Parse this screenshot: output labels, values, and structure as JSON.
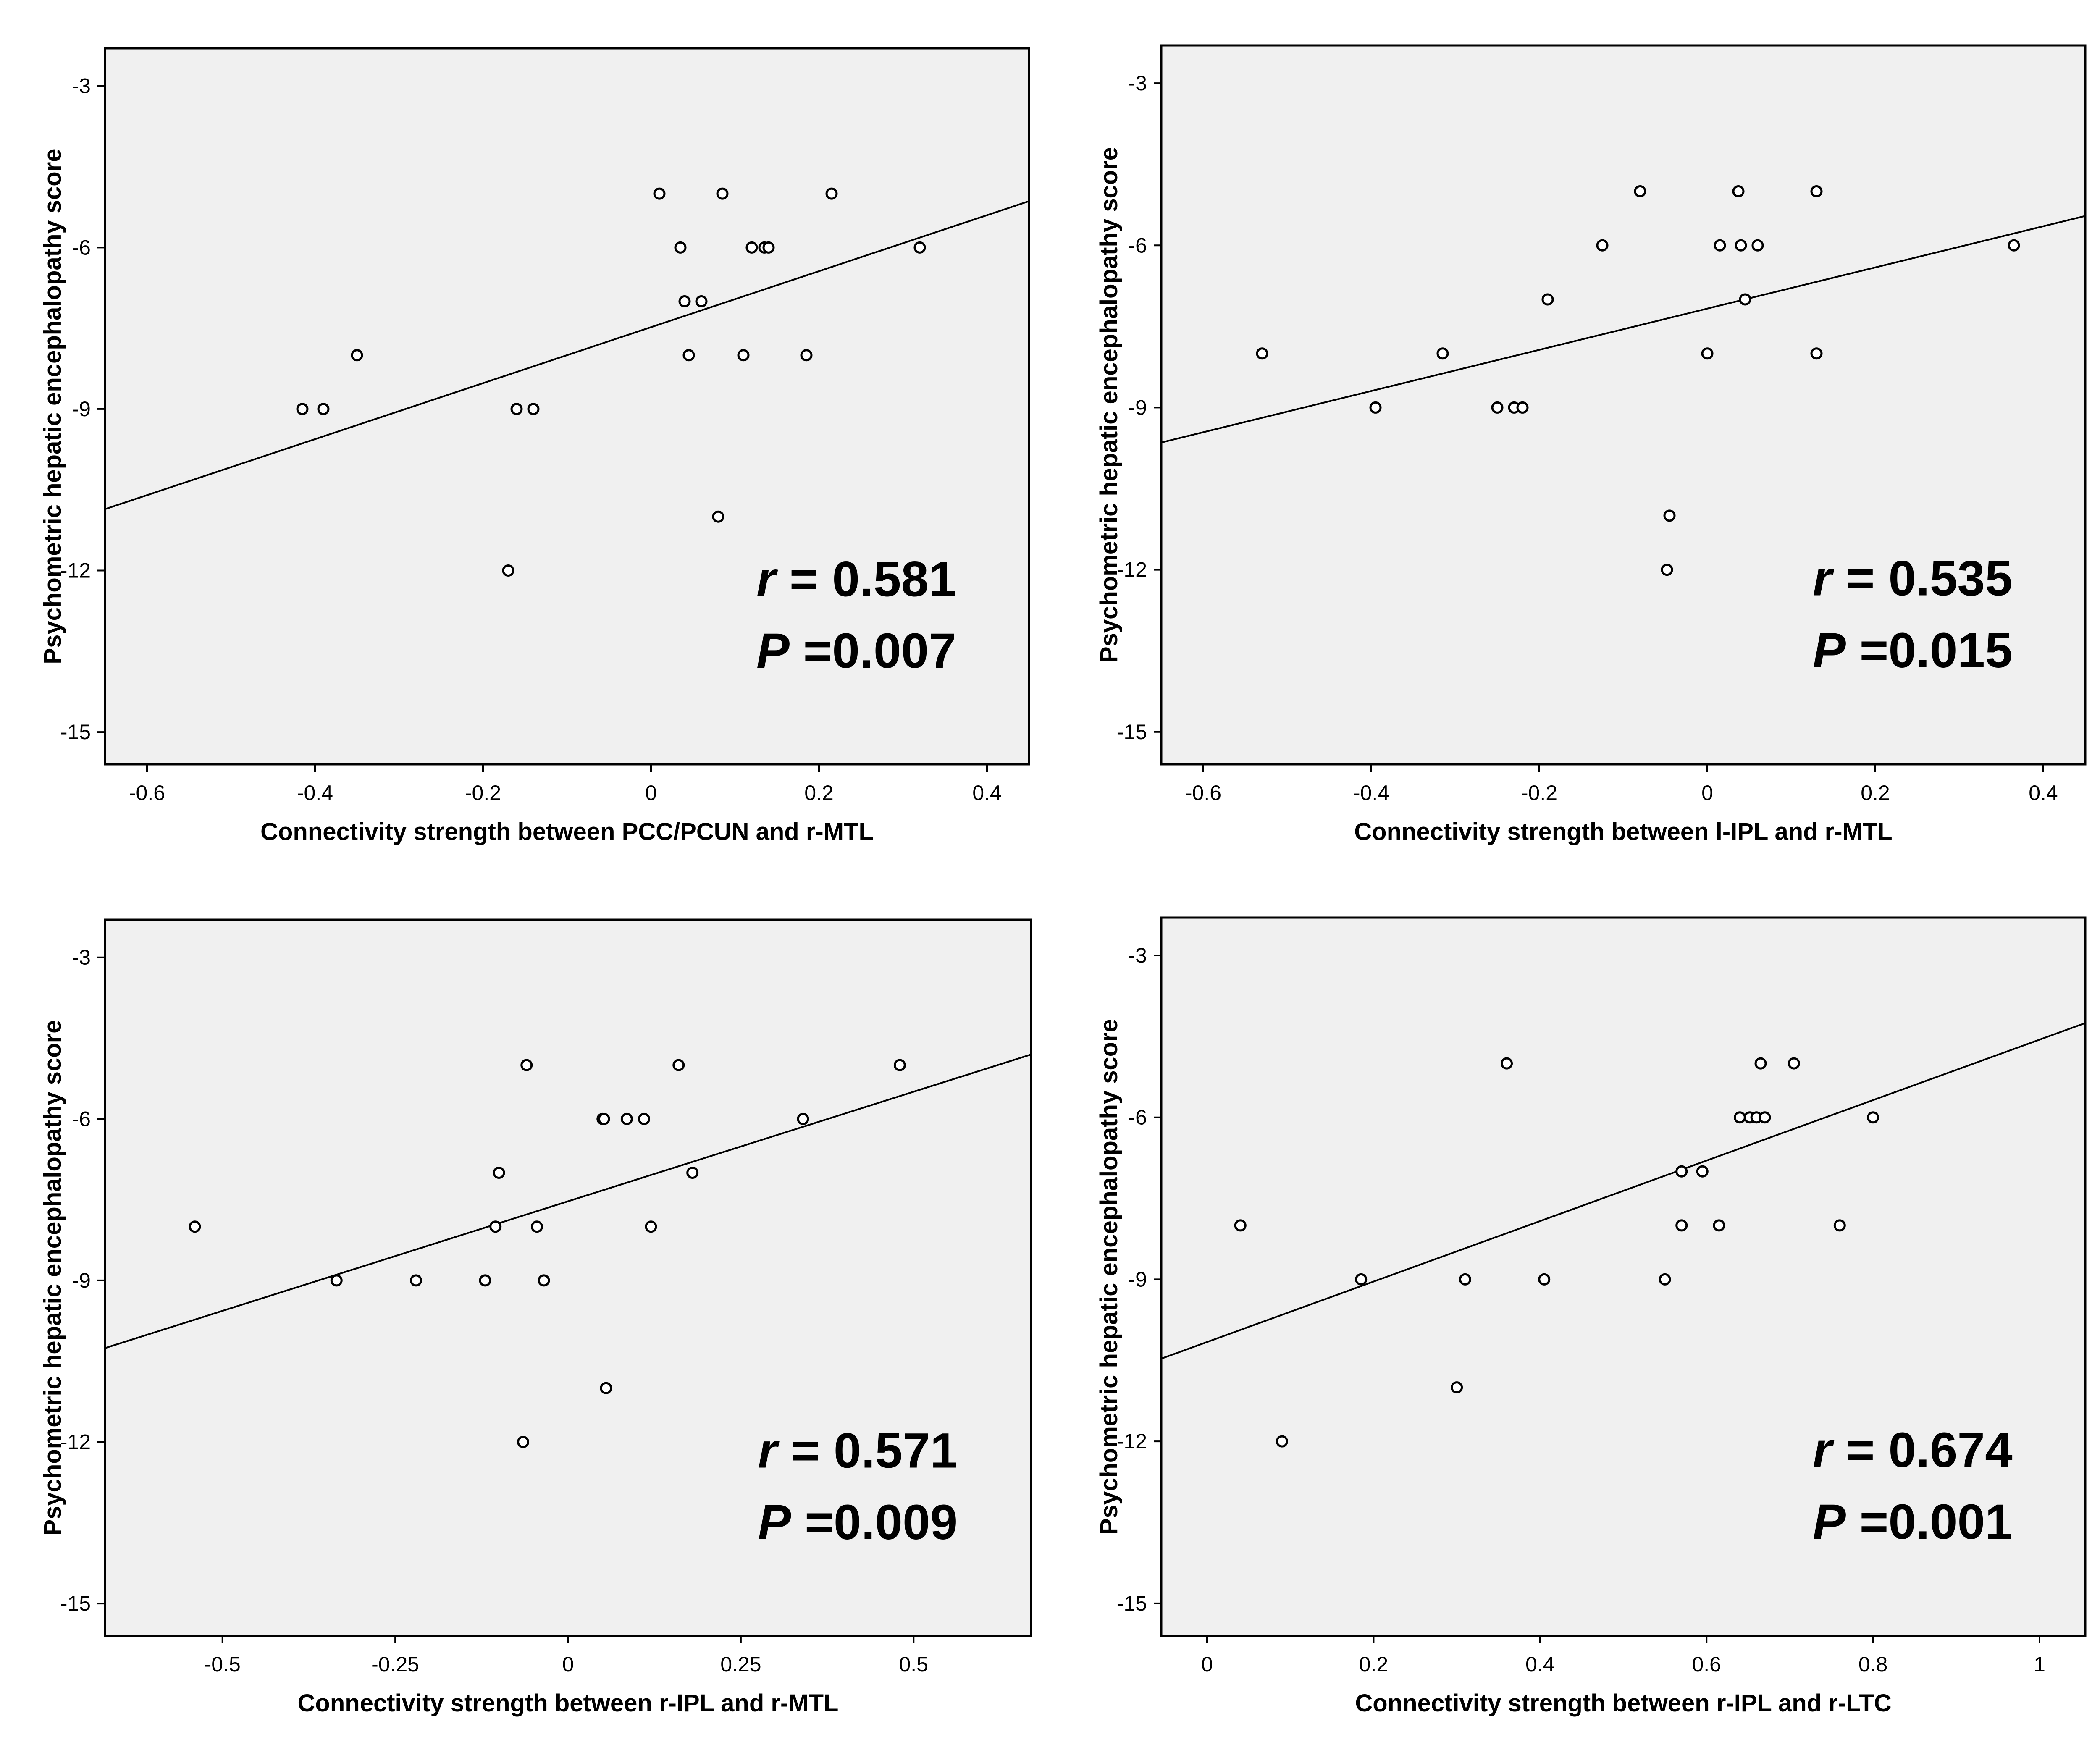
{
  "chart_data": [
    {
      "type": "scatter",
      "xlabel": "Connectivity strength between PCC/PCUN and r-MTL",
      "ylabel": "Psychometric hepatic encephalopathy score",
      "xlim": [
        -0.65,
        0.45
      ],
      "ylim": [
        -15.6,
        -2.3
      ],
      "xticks": [
        -0.6,
        -0.4,
        -0.2,
        0,
        0.2,
        0.4
      ],
      "xtick_labels": [
        "-0.6",
        "-0.4",
        "-0.2",
        "0",
        "0.2",
        "0.4"
      ],
      "yticks": [
        -3,
        -6,
        -9,
        -12,
        -15
      ],
      "ytick_labels": [
        "-3",
        "-6",
        "-9",
        "-12",
        "-15"
      ],
      "points": [
        [
          -0.415,
          -9
        ],
        [
          -0.39,
          -9
        ],
        [
          -0.35,
          -8
        ],
        [
          -0.17,
          -12
        ],
        [
          -0.16,
          -9
        ],
        [
          -0.14,
          -9
        ],
        [
          0.01,
          -5
        ],
        [
          0.035,
          -6
        ],
        [
          0.04,
          -7
        ],
        [
          0.045,
          -8
        ],
        [
          0.06,
          -7
        ],
        [
          0.08,
          -11
        ],
        [
          0.085,
          -5
        ],
        [
          0.11,
          -8
        ],
        [
          0.12,
          -6
        ],
        [
          0.135,
          -6
        ],
        [
          0.14,
          -6
        ],
        [
          0.185,
          -8
        ],
        [
          0.215,
          -5
        ],
        [
          0.32,
          -6
        ]
      ],
      "fit_line": {
        "slope": 5.2,
        "intercept": -7.48
      },
      "r_label": "r",
      "r_value": "= 0.581",
      "p_label": "P",
      "p_value": "=0.007"
    },
    {
      "type": "scatter",
      "xlabel": "Connectivity strength between l-IPL and r-MTL",
      "ylabel": "Psychometric hepatic encephalopathy score",
      "xlim": [
        -0.65,
        0.45
      ],
      "ylim": [
        -15.6,
        -2.3
      ],
      "xticks": [
        -0.6,
        -0.4,
        -0.2,
        0,
        0.2,
        0.4
      ],
      "xtick_labels": [
        "-0.6",
        "-0.4",
        "-0.2",
        "0",
        "0.2",
        "0.4"
      ],
      "yticks": [
        -3,
        -6,
        -9,
        -12,
        -15
      ],
      "ytick_labels": [
        "-3",
        "-6",
        "-9",
        "-12",
        "-15"
      ],
      "points": [
        [
          -0.53,
          -8
        ],
        [
          -0.395,
          -9
        ],
        [
          -0.315,
          -8
        ],
        [
          -0.25,
          -9
        ],
        [
          -0.23,
          -9
        ],
        [
          -0.22,
          -9
        ],
        [
          -0.19,
          -7
        ],
        [
          -0.125,
          -6
        ],
        [
          -0.08,
          -5
        ],
        [
          -0.045,
          -11
        ],
        [
          -0.048,
          -12
        ],
        [
          0,
          -8
        ],
        [
          0.015,
          -6
        ],
        [
          0.037,
          -5
        ],
        [
          0.04,
          -6
        ],
        [
          0.045,
          -7
        ],
        [
          0.06,
          -6
        ],
        [
          0.13,
          -8
        ],
        [
          0.13,
          -5
        ],
        [
          0.365,
          -6
        ]
      ],
      "fit_line": {
        "slope": 3.81,
        "intercept": -7.17
      },
      "r_label": "r",
      "r_value": "= 0.535",
      "p_label": "P",
      "p_value": "=0.015"
    },
    {
      "type": "scatter",
      "xlabel": "Connectivity strength between r-IPL and r-MTL",
      "ylabel": "Psychometric hepatic encephalopathy score",
      "xlim": [
        -0.67,
        0.67
      ],
      "ylim": [
        -15.6,
        -2.3
      ],
      "xticks": [
        -0.5,
        -0.25,
        0,
        0.25,
        0.5
      ],
      "xtick_labels": [
        "-0.5",
        "-0.25",
        "0",
        "0.25",
        "0.5"
      ],
      "yticks": [
        -3,
        -6,
        -9,
        -12,
        -15
      ],
      "ytick_labels": [
        "-3",
        "-6",
        "-9",
        "-12",
        "-15"
      ],
      "points": [
        [
          -0.54,
          -8
        ],
        [
          -0.335,
          -9
        ],
        [
          -0.22,
          -9
        ],
        [
          -0.12,
          -9
        ],
        [
          -0.105,
          -8
        ],
        [
          -0.1,
          -7
        ],
        [
          -0.065,
          -12
        ],
        [
          -0.06,
          -5
        ],
        [
          -0.045,
          -8
        ],
        [
          -0.035,
          -9
        ],
        [
          0.05,
          -6
        ],
        [
          0.052,
          -6
        ],
        [
          0.055,
          -11
        ],
        [
          0.085,
          -6
        ],
        [
          0.11,
          -6
        ],
        [
          0.12,
          -8
        ],
        [
          0.16,
          -5
        ],
        [
          0.18,
          -7
        ],
        [
          0.34,
          -6
        ],
        [
          0.48,
          -5
        ]
      ],
      "fit_line": {
        "slope": 4.07,
        "intercept": -7.53
      },
      "r_label": "r",
      "r_value": "= 0.571",
      "p_label": "P",
      "p_value": "=0.009"
    },
    {
      "type": "scatter",
      "xlabel": "Connectivity strength between r-IPL and r-LTC",
      "ylabel": "Psychometric hepatic encephalopathy score",
      "xlim": [
        -0.055,
        1.055
      ],
      "ylim": [
        -15.6,
        -2.3
      ],
      "xticks": [
        0,
        0.2,
        0.4,
        0.6,
        0.8,
        1
      ],
      "xtick_labels": [
        "0",
        "0.2",
        "0.4",
        "0.6",
        "0.8",
        "1"
      ],
      "yticks": [
        -3,
        -6,
        -9,
        -12,
        -15
      ],
      "ytick_labels": [
        "-3",
        "-6",
        "-9",
        "-12",
        "-15"
      ],
      "points": [
        [
          0.04,
          -8
        ],
        [
          0.09,
          -12
        ],
        [
          0.185,
          -9
        ],
        [
          0.3,
          -11
        ],
        [
          0.31,
          -9
        ],
        [
          0.36,
          -5
        ],
        [
          0.405,
          -9
        ],
        [
          0.55,
          -9
        ],
        [
          0.57,
          -7
        ],
        [
          0.57,
          -8
        ],
        [
          0.595,
          -7
        ],
        [
          0.615,
          -8
        ],
        [
          0.64,
          -6
        ],
        [
          0.652,
          -6
        ],
        [
          0.66,
          -6
        ],
        [
          0.67,
          -6
        ],
        [
          0.665,
          -5
        ],
        [
          0.705,
          -5
        ],
        [
          0.76,
          -8
        ],
        [
          0.8,
          -6
        ]
      ],
      "fit_line": {
        "slope": 5.6,
        "intercept": -10.16
      },
      "r_label": "r",
      "r_value": "= 0.674",
      "p_label": "P",
      "p_value": "=0.001"
    }
  ]
}
